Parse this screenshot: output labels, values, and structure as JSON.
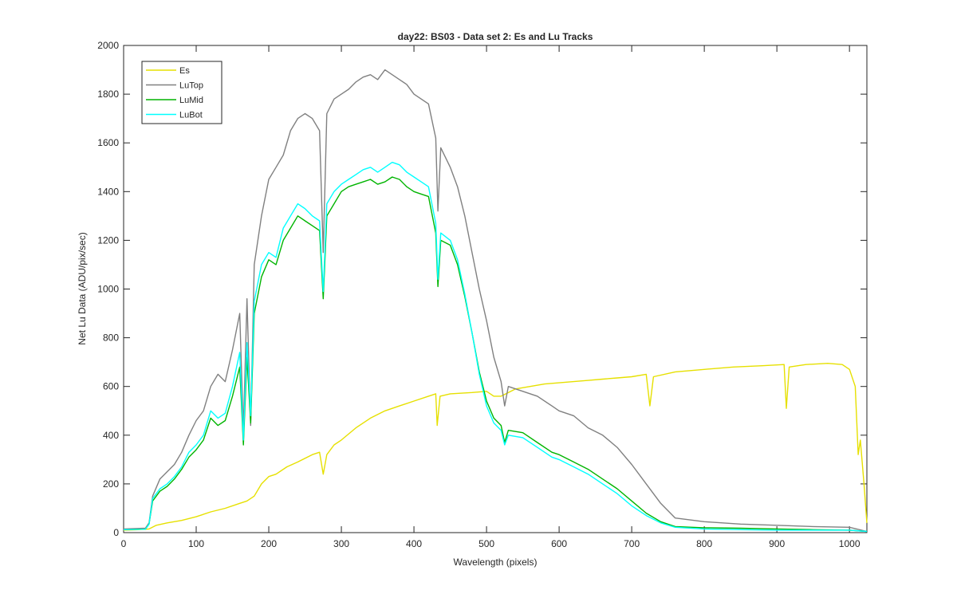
{
  "chart_data": {
    "type": "line",
    "title": "day22: BS03 - Data set 2: Es and Lu Tracks",
    "xlabel": "Wavelength (pixels)",
    "ylabel": "Net Lu Data (ADU/pix/sec)",
    "xlim": [
      0,
      1024
    ],
    "ylim": [
      0,
      2000
    ],
    "xticks": [
      0,
      100,
      200,
      300,
      400,
      500,
      600,
      700,
      800,
      900,
      1000
    ],
    "yticks": [
      0,
      200,
      400,
      600,
      800,
      1000,
      1200,
      1400,
      1600,
      1800,
      2000
    ],
    "grid": false,
    "legend_location": "top-left",
    "series": [
      {
        "name": "Es",
        "color": "#e6e000",
        "points": [
          [
            0,
            10
          ],
          [
            20,
            12
          ],
          [
            35,
            15
          ],
          [
            45,
            30
          ],
          [
            60,
            40
          ],
          [
            80,
            50
          ],
          [
            100,
            65
          ],
          [
            120,
            85
          ],
          [
            140,
            100
          ],
          [
            160,
            120
          ],
          [
            170,
            130
          ],
          [
            180,
            150
          ],
          [
            190,
            200
          ],
          [
            200,
            230
          ],
          [
            210,
            240
          ],
          [
            225,
            270
          ],
          [
            240,
            290
          ],
          [
            260,
            320
          ],
          [
            270,
            330
          ],
          [
            275,
            240
          ],
          [
            280,
            320
          ],
          [
            290,
            360
          ],
          [
            300,
            380
          ],
          [
            320,
            430
          ],
          [
            340,
            470
          ],
          [
            360,
            500
          ],
          [
            380,
            520
          ],
          [
            400,
            540
          ],
          [
            420,
            560
          ],
          [
            430,
            570
          ],
          [
            432,
            440
          ],
          [
            436,
            560
          ],
          [
            450,
            570
          ],
          [
            480,
            575
          ],
          [
            500,
            580
          ],
          [
            510,
            560
          ],
          [
            520,
            560
          ],
          [
            540,
            590
          ],
          [
            560,
            600
          ],
          [
            580,
            610
          ],
          [
            600,
            615
          ],
          [
            620,
            620
          ],
          [
            640,
            625
          ],
          [
            660,
            630
          ],
          [
            680,
            635
          ],
          [
            700,
            640
          ],
          [
            720,
            650
          ],
          [
            725,
            520
          ],
          [
            730,
            640
          ],
          [
            760,
            660
          ],
          [
            800,
            670
          ],
          [
            840,
            680
          ],
          [
            880,
            685
          ],
          [
            910,
            690
          ],
          [
            913,
            510
          ],
          [
            917,
            680
          ],
          [
            940,
            690
          ],
          [
            970,
            695
          ],
          [
            990,
            690
          ],
          [
            1000,
            670
          ],
          [
            1008,
            600
          ],
          [
            1012,
            320
          ],
          [
            1015,
            380
          ],
          [
            1020,
            200
          ],
          [
            1024,
            40
          ]
        ]
      },
      {
        "name": "LuTop",
        "color": "#808080",
        "points": [
          [
            0,
            15
          ],
          [
            30,
            18
          ],
          [
            35,
            40
          ],
          [
            40,
            150
          ],
          [
            50,
            220
          ],
          [
            60,
            250
          ],
          [
            70,
            280
          ],
          [
            80,
            330
          ],
          [
            90,
            400
          ],
          [
            100,
            460
          ],
          [
            110,
            500
          ],
          [
            120,
            600
          ],
          [
            130,
            650
          ],
          [
            140,
            620
          ],
          [
            150,
            750
          ],
          [
            160,
            900
          ],
          [
            165,
            420
          ],
          [
            170,
            960
          ],
          [
            175,
            440
          ],
          [
            180,
            1100
          ],
          [
            190,
            1300
          ],
          [
            200,
            1450
          ],
          [
            210,
            1500
          ],
          [
            220,
            1550
          ],
          [
            230,
            1650
          ],
          [
            240,
            1700
          ],
          [
            250,
            1720
          ],
          [
            260,
            1700
          ],
          [
            270,
            1650
          ],
          [
            275,
            1150
          ],
          [
            280,
            1720
          ],
          [
            290,
            1780
          ],
          [
            300,
            1800
          ],
          [
            310,
            1820
          ],
          [
            320,
            1850
          ],
          [
            330,
            1870
          ],
          [
            340,
            1880
          ],
          [
            350,
            1860
          ],
          [
            360,
            1900
          ],
          [
            370,
            1880
          ],
          [
            380,
            1860
          ],
          [
            390,
            1840
          ],
          [
            400,
            1800
          ],
          [
            410,
            1780
          ],
          [
            420,
            1760
          ],
          [
            430,
            1620
          ],
          [
            433,
            1320
          ],
          [
            437,
            1580
          ],
          [
            450,
            1500
          ],
          [
            460,
            1420
          ],
          [
            470,
            1300
          ],
          [
            480,
            1150
          ],
          [
            490,
            1000
          ],
          [
            500,
            870
          ],
          [
            510,
            720
          ],
          [
            520,
            620
          ],
          [
            525,
            520
          ],
          [
            530,
            600
          ],
          [
            550,
            580
          ],
          [
            570,
            560
          ],
          [
            590,
            520
          ],
          [
            600,
            500
          ],
          [
            620,
            480
          ],
          [
            640,
            430
          ],
          [
            660,
            400
          ],
          [
            680,
            350
          ],
          [
            700,
            280
          ],
          [
            720,
            200
          ],
          [
            740,
            120
          ],
          [
            760,
            60
          ],
          [
            800,
            45
          ],
          [
            850,
            35
          ],
          [
            900,
            30
          ],
          [
            950,
            25
          ],
          [
            1000,
            22
          ],
          [
            1024,
            5
          ]
        ]
      },
      {
        "name": "LuMid",
        "color": "#00b400",
        "points": [
          [
            0,
            12
          ],
          [
            30,
            14
          ],
          [
            35,
            35
          ],
          [
            40,
            130
          ],
          [
            50,
            170
          ],
          [
            60,
            190
          ],
          [
            70,
            220
          ],
          [
            80,
            260
          ],
          [
            90,
            310
          ],
          [
            100,
            340
          ],
          [
            110,
            380
          ],
          [
            120,
            470
          ],
          [
            130,
            440
          ],
          [
            140,
            460
          ],
          [
            150,
            560
          ],
          [
            160,
            680
          ],
          [
            165,
            360
          ],
          [
            170,
            720
          ],
          [
            175,
            450
          ],
          [
            180,
            900
          ],
          [
            190,
            1050
          ],
          [
            200,
            1120
          ],
          [
            210,
            1100
          ],
          [
            220,
            1200
          ],
          [
            230,
            1250
          ],
          [
            240,
            1300
          ],
          [
            250,
            1280
          ],
          [
            260,
            1260
          ],
          [
            270,
            1240
          ],
          [
            275,
            960
          ],
          [
            280,
            1300
          ],
          [
            290,
            1350
          ],
          [
            300,
            1400
          ],
          [
            310,
            1420
          ],
          [
            320,
            1430
          ],
          [
            330,
            1440
          ],
          [
            340,
            1450
          ],
          [
            350,
            1430
          ],
          [
            360,
            1440
          ],
          [
            370,
            1460
          ],
          [
            380,
            1450
          ],
          [
            390,
            1420
          ],
          [
            400,
            1400
          ],
          [
            410,
            1390
          ],
          [
            420,
            1380
          ],
          [
            430,
            1230
          ],
          [
            433,
            1010
          ],
          [
            437,
            1200
          ],
          [
            450,
            1180
          ],
          [
            460,
            1100
          ],
          [
            470,
            970
          ],
          [
            480,
            820
          ],
          [
            490,
            660
          ],
          [
            500,
            540
          ],
          [
            510,
            470
          ],
          [
            520,
            440
          ],
          [
            525,
            370
          ],
          [
            530,
            420
          ],
          [
            550,
            410
          ],
          [
            570,
            370
          ],
          [
            590,
            330
          ],
          [
            600,
            320
          ],
          [
            620,
            290
          ],
          [
            640,
            260
          ],
          [
            660,
            220
          ],
          [
            680,
            180
          ],
          [
            700,
            130
          ],
          [
            720,
            80
          ],
          [
            740,
            45
          ],
          [
            760,
            25
          ],
          [
            800,
            20
          ],
          [
            850,
            18
          ],
          [
            900,
            15
          ],
          [
            950,
            12
          ],
          [
            1000,
            10
          ],
          [
            1024,
            5
          ]
        ]
      },
      {
        "name": "LuBot",
        "color": "#00ffff",
        "points": [
          [
            0,
            12
          ],
          [
            30,
            14
          ],
          [
            35,
            35
          ],
          [
            40,
            140
          ],
          [
            50,
            180
          ],
          [
            60,
            200
          ],
          [
            70,
            230
          ],
          [
            80,
            270
          ],
          [
            90,
            330
          ],
          [
            100,
            360
          ],
          [
            110,
            400
          ],
          [
            120,
            500
          ],
          [
            130,
            470
          ],
          [
            140,
            490
          ],
          [
            150,
            600
          ],
          [
            160,
            740
          ],
          [
            165,
            380
          ],
          [
            170,
            780
          ],
          [
            175,
            480
          ],
          [
            180,
            950
          ],
          [
            190,
            1100
          ],
          [
            200,
            1150
          ],
          [
            210,
            1130
          ],
          [
            220,
            1250
          ],
          [
            230,
            1300
          ],
          [
            240,
            1350
          ],
          [
            250,
            1330
          ],
          [
            260,
            1300
          ],
          [
            270,
            1280
          ],
          [
            275,
            990
          ],
          [
            280,
            1350
          ],
          [
            290,
            1400
          ],
          [
            300,
            1430
          ],
          [
            310,
            1450
          ],
          [
            320,
            1470
          ],
          [
            330,
            1490
          ],
          [
            340,
            1500
          ],
          [
            350,
            1480
          ],
          [
            360,
            1500
          ],
          [
            370,
            1520
          ],
          [
            380,
            1510
          ],
          [
            390,
            1480
          ],
          [
            400,
            1460
          ],
          [
            410,
            1440
          ],
          [
            420,
            1420
          ],
          [
            430,
            1270
          ],
          [
            433,
            1040
          ],
          [
            437,
            1230
          ],
          [
            450,
            1200
          ],
          [
            460,
            1120
          ],
          [
            470,
            980
          ],
          [
            480,
            820
          ],
          [
            490,
            650
          ],
          [
            500,
            520
          ],
          [
            510,
            450
          ],
          [
            520,
            420
          ],
          [
            525,
            360
          ],
          [
            530,
            400
          ],
          [
            550,
            390
          ],
          [
            570,
            350
          ],
          [
            590,
            310
          ],
          [
            600,
            300
          ],
          [
            620,
            270
          ],
          [
            640,
            240
          ],
          [
            660,
            200
          ],
          [
            680,
            160
          ],
          [
            700,
            110
          ],
          [
            720,
            70
          ],
          [
            740,
            40
          ],
          [
            760,
            22
          ],
          [
            800,
            15
          ],
          [
            850,
            12
          ],
          [
            900,
            10
          ],
          [
            950,
            10
          ],
          [
            1000,
            10
          ],
          [
            1024,
            5
          ]
        ]
      }
    ]
  }
}
